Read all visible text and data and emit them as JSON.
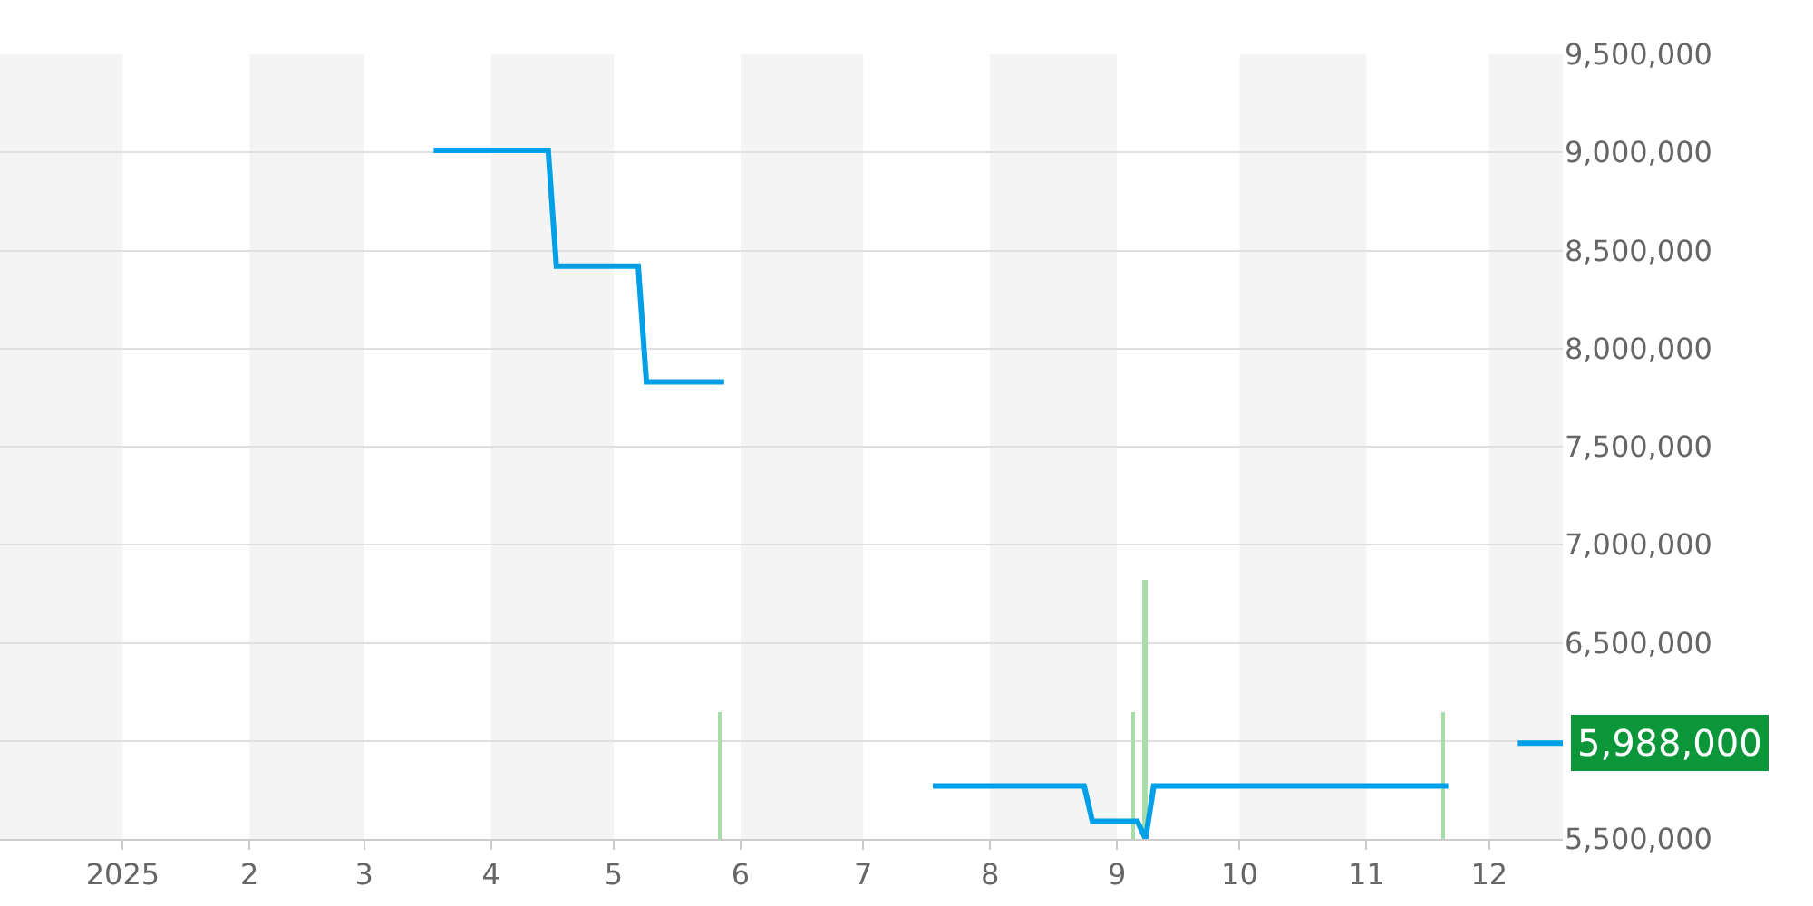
{
  "chart_data": {
    "type": "line",
    "xlim": [
      "2024-12-02",
      "2025-12-19"
    ],
    "xticks": [
      {
        "value": "2025-01-01",
        "label": "2025"
      },
      {
        "value": "2025-02-01",
        "label": "2"
      },
      {
        "value": "2025-03-01",
        "label": "3"
      },
      {
        "value": "2025-04-01",
        "label": "4"
      },
      {
        "value": "2025-05-01",
        "label": "5"
      },
      {
        "value": "2025-06-01",
        "label": "6"
      },
      {
        "value": "2025-07-01",
        "label": "7"
      },
      {
        "value": "2025-08-01",
        "label": "8"
      },
      {
        "value": "2025-09-01",
        "label": "9"
      },
      {
        "value": "2025-10-01",
        "label": "10"
      },
      {
        "value": "2025-11-01",
        "label": "11"
      },
      {
        "value": "2025-12-01",
        "label": "12"
      }
    ],
    "ylim": [
      5500000,
      9500000
    ],
    "yticks": [
      {
        "value": 5500000,
        "label": "5,500,000"
      },
      {
        "value": 6000000,
        "label": null
      },
      {
        "value": 6500000,
        "label": "6,500,000"
      },
      {
        "value": 7000000,
        "label": "7,000,000"
      },
      {
        "value": 7500000,
        "label": "7,500,000"
      },
      {
        "value": 8000000,
        "label": "8,000,000"
      },
      {
        "value": 8500000,
        "label": "8,500,000"
      },
      {
        "value": 9000000,
        "label": "9,000,000"
      },
      {
        "value": 9500000,
        "label": "9,500,000"
      }
    ],
    "grid": "y",
    "series": [
      {
        "type": "bar",
        "color": "#a8dca8",
        "x": [
          "2025-05-27",
          "2025-09-05",
          "2025-09-08",
          "2025-11-20"
        ],
        "base": [
          5500000,
          5500000,
          5500000,
          5500000
        ],
        "values": [
          650000,
          650000,
          1320000,
          650000
        ]
      },
      {
        "color": "#00a0e9",
        "x": [
          "2025-03-18",
          "2025-04-15",
          "2025-04-17",
          "2025-05-07",
          "2025-05-09",
          "2025-05-28",
          "2025-06-20",
          "2025-07-18",
          "2025-08-24",
          "2025-08-26",
          "2025-09-06",
          "2025-09-08",
          "2025-09-10",
          "2025-11-21",
          "2025-12-01",
          "2025-12-08",
          "2025-12-19"
        ],
        "values": [
          9010000,
          9010000,
          8420000,
          8420000,
          7830000,
          7830000,
          null,
          5770000,
          5770000,
          5590000,
          5590000,
          5500000,
          5770000,
          5770000,
          null,
          5988000,
          5988000
        ]
      }
    ],
    "bands": [
      {
        "axis": "x",
        "from": "2024-12-02",
        "to": "2025-01-01",
        "color": "#f4f4f4"
      },
      {
        "axis": "x",
        "from": "2025-02-01",
        "to": "2025-03-01",
        "color": "#f4f4f4"
      },
      {
        "axis": "x",
        "from": "2025-04-01",
        "to": "2025-05-01",
        "color": "#f4f4f4"
      },
      {
        "axis": "x",
        "from": "2025-06-01",
        "to": "2025-07-01",
        "color": "#f4f4f4"
      },
      {
        "axis": "x",
        "from": "2025-08-01",
        "to": "2025-09-01",
        "color": "#f4f4f4"
      },
      {
        "axis": "x",
        "from": "2025-10-01",
        "to": "2025-11-01",
        "color": "#f4f4f4"
      },
      {
        "axis": "x",
        "from": "2025-12-01",
        "to": "2025-12-19",
        "color": "#f4f4f4"
      }
    ],
    "annotations": [
      {
        "text": "5,988,000",
        "x": "2025-12-19",
        "y": 5988000
      }
    ]
  }
}
